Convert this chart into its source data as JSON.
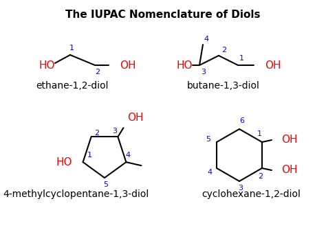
{
  "title": "The IUPAC Nomenclature of Diols",
  "title_fontsize": 11,
  "title_fontweight": "bold",
  "bg_color": "#ffffff",
  "OH_color": "red",
  "number_color": "blue",
  "bond_color": "black",
  "captions": {
    "ethane": "ethane-1,2-diol",
    "butane": "butane-1,3-diol",
    "methyl": "4-methylcyclopentane-1,3-diol",
    "cyclohexane": "cyclohexane-1,2-diol"
  },
  "fs_label": 11,
  "fs_num": 8,
  "fs_cap": 10
}
